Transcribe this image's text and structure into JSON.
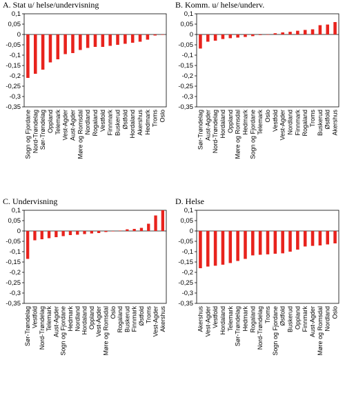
{
  "chart_data": [
    {
      "type": "bar",
      "title": "A. Stat u/ helse/undervisning",
      "bar_color": "#e8231d",
      "ylim": [
        -0.35,
        0.1
      ],
      "yticks": [
        "0,1",
        "0,05",
        "0",
        "-0,05",
        "-0,1",
        "-0,15",
        "-0,2",
        "-0,25",
        "-0,3",
        "-0,35"
      ],
      "categories": [
        "Sogn og Fjordane",
        "Nord-Trøndelag",
        "Sør-Trøndelag",
        "Oppland",
        "Telemark",
        "Vest-Agder",
        "Aust-Agder",
        "Møre og Romsdal",
        "Nordland",
        "Rogaland",
        "Vestfold",
        "Finnmark",
        "Buskerud",
        "Østfold",
        "Hordaland",
        "Akershus",
        "Hedmark",
        "Troms",
        "Oslo"
      ],
      "values": [
        -0.21,
        -0.19,
        -0.17,
        -0.135,
        -0.12,
        -0.095,
        -0.09,
        -0.075,
        -0.065,
        -0.06,
        -0.06,
        -0.055,
        -0.05,
        -0.045,
        -0.04,
        -0.035,
        -0.025,
        -0.005,
        0.0
      ]
    },
    {
      "type": "bar",
      "title": "B. Komm. u/ helse/underv.",
      "bar_color": "#e8231d",
      "ylim": [
        -0.35,
        0.1
      ],
      "yticks": [
        "0,1",
        "0,05",
        "0",
        "-0,05",
        "-0,1",
        "-0,15",
        "-0,2",
        "-0,25",
        "-0,3",
        "-0,35"
      ],
      "categories": [
        "Sør-Trøndelag",
        "Aust-Agder",
        "Nord-Trøndelag",
        "Hordaland",
        "Oppland",
        "Møre og Romsdal",
        "Hedmark",
        "Sogn og Fjordane",
        "Telemark",
        "Oslo",
        "Vestfold",
        "Vest-Agder",
        "Nordland",
        "Finnmark",
        "Rogaland",
        "Troms",
        "Buskerud",
        "Østfold",
        "Akershus"
      ],
      "values": [
        -0.068,
        -0.035,
        -0.03,
        -0.022,
        -0.018,
        -0.015,
        -0.012,
        -0.008,
        -0.003,
        0.0,
        0.006,
        0.01,
        0.013,
        0.018,
        0.022,
        0.025,
        0.045,
        0.048,
        0.06
      ]
    },
    {
      "type": "bar",
      "title": "C. Undervisning",
      "bar_color": "#e8231d",
      "ylim": [
        -0.35,
        0.1
      ],
      "yticks": [
        "0,1",
        "0,05",
        "0",
        "-0,05",
        "-0,1",
        "-0,15",
        "-0,2",
        "-0,25",
        "-0,3",
        "-0,35"
      ],
      "categories": [
        "Sør-Trøndelag",
        "Vestfold",
        "Nord-Trøndelag",
        "Telemark",
        "Aust-Agder",
        "Sogn og Fjordane",
        "Hedmark",
        "Nordland",
        "Hordaland",
        "Oppland",
        "Vest-Agder",
        "Møre og Romsdal",
        "Oslo",
        "Rogaland",
        "Buskerud",
        "Finnmark",
        "Østfold",
        "Troms",
        "Vest-Agder",
        "Akershus"
      ],
      "values": [
        -0.135,
        -0.045,
        -0.04,
        -0.035,
        -0.03,
        -0.025,
        -0.02,
        -0.018,
        -0.015,
        -0.012,
        -0.01,
        -0.005,
        0.0,
        0.002,
        0.008,
        0.01,
        0.015,
        0.035,
        0.075,
        0.1
      ]
    },
    {
      "type": "bar",
      "title": "D. Helse",
      "bar_color": "#e8231d",
      "ylim": [
        -0.35,
        0.1
      ],
      "yticks": [
        "0,1",
        "0,05",
        "0",
        "-0,05",
        "-0,1",
        "-0,15",
        "-0,2",
        "-0,25",
        "-0,3",
        "-0,35"
      ],
      "categories": [
        "Akershus",
        "Vest-Agder",
        "Vestfold",
        "Hordaland",
        "Telemark",
        "Sør-Trøndelag",
        "Hedmark",
        "Rogaland",
        "Nord-Trøndelag",
        "Troms",
        "Sogn og Fjordane",
        "Østfold",
        "Buskerud",
        "Oppland",
        "Finnmark",
        "Aust-Agder",
        "Møre og Romsdal",
        "Nordland",
        "Oslo"
      ],
      "values": [
        -0.18,
        -0.172,
        -0.168,
        -0.163,
        -0.155,
        -0.145,
        -0.135,
        -0.118,
        -0.115,
        -0.113,
        -0.11,
        -0.108,
        -0.1,
        -0.09,
        -0.075,
        -0.072,
        -0.07,
        -0.065,
        -0.06
      ]
    }
  ]
}
